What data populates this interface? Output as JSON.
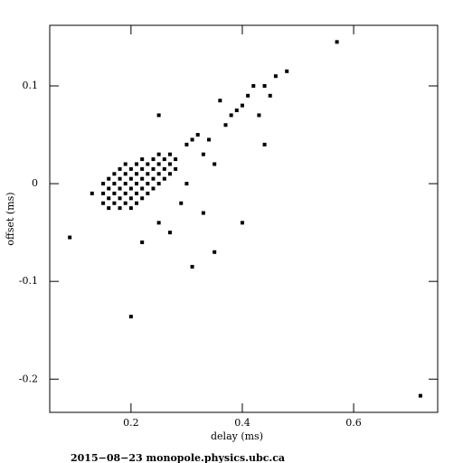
{
  "chart_data": {
    "type": "scatter",
    "title": "",
    "x_label": "delay (ms)",
    "y_label": "offset (ms)",
    "footer": "2015−08−23  monopole.physics.ubc.ca",
    "xlim": [
      0.054,
      0.751
    ],
    "ylim": [
      -0.234,
      0.162
    ],
    "xticks": [
      0.2,
      0.4,
      0.6
    ],
    "yticks": [
      0.1,
      0,
      -0.1,
      -0.2
    ],
    "color": "#000000",
    "x": [
      0.15,
      0.15,
      0.15,
      0.16,
      0.16,
      0.16,
      0.16,
      0.17,
      0.17,
      0.17,
      0.17,
      0.18,
      0.18,
      0.18,
      0.18,
      0.18,
      0.19,
      0.19,
      0.19,
      0.19,
      0.19,
      0.2,
      0.2,
      0.2,
      0.2,
      0.2,
      0.21,
      0.21,
      0.21,
      0.21,
      0.21,
      0.22,
      0.22,
      0.22,
      0.22,
      0.22,
      0.23,
      0.23,
      0.23,
      0.23,
      0.24,
      0.24,
      0.24,
      0.24,
      0.25,
      0.25,
      0.25,
      0.25,
      0.26,
      0.26,
      0.26,
      0.27,
      0.27,
      0.27,
      0.28,
      0.28,
      0.3,
      0.31,
      0.32,
      0.3,
      0.29,
      0.33,
      0.35,
      0.38,
      0.4,
      0.41,
      0.42,
      0.44,
      0.46,
      0.48,
      0.45,
      0.39,
      0.37,
      0.36,
      0.43,
      0.57,
      0.72,
      0.09,
      0.2,
      0.31,
      0.35,
      0.4,
      0.13,
      0.25,
      0.27,
      0.22,
      0.34,
      0.44,
      0.25,
      0.33
    ],
    "y": [
      -0.01,
      0.0,
      -0.02,
      -0.015,
      -0.005,
      0.005,
      -0.025,
      -0.02,
      -0.01,
      0.0,
      0.01,
      -0.025,
      -0.015,
      -0.005,
      0.005,
      0.015,
      -0.02,
      -0.01,
      0.0,
      0.01,
      0.02,
      -0.025,
      -0.015,
      -0.005,
      0.005,
      0.015,
      -0.02,
      -0.01,
      0.0,
      0.01,
      0.02,
      -0.015,
      -0.005,
      0.005,
      0.015,
      0.025,
      -0.01,
      0.0,
      0.01,
      0.02,
      -0.005,
      0.005,
      0.015,
      0.025,
      0.0,
      0.01,
      0.02,
      0.03,
      0.005,
      0.015,
      0.025,
      0.01,
      0.02,
      0.03,
      0.015,
      0.025,
      0.04,
      0.045,
      0.05,
      0.0,
      -0.02,
      0.03,
      0.02,
      0.07,
      0.08,
      0.09,
      0.1,
      0.1,
      0.11,
      0.115,
      0.09,
      0.075,
      0.06,
      0.085,
      0.07,
      0.145,
      -0.217,
      -0.055,
      -0.136,
      -0.085,
      -0.07,
      -0.04,
      -0.01,
      -0.04,
      -0.05,
      -0.06,
      0.045,
      0.04,
      0.07,
      -0.03
    ]
  }
}
